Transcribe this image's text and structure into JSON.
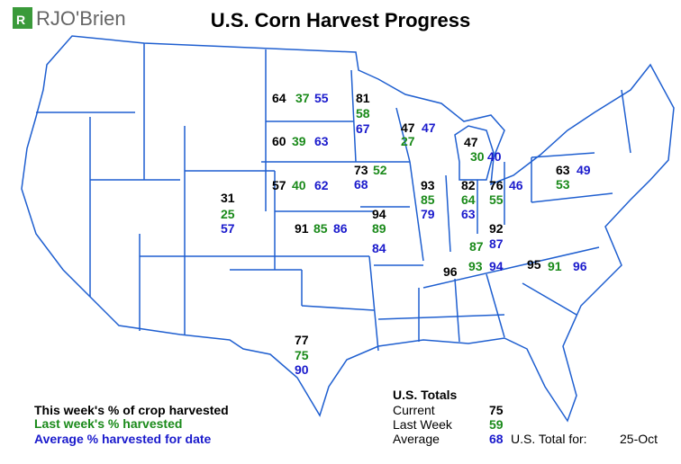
{
  "header": {
    "logo": "RJO'Brien",
    "title": "U.S. Corn Harvest Progress"
  },
  "states": [
    {
      "current": 64,
      "last_week": 37,
      "average": 55
    },
    {
      "current": 81,
      "last_week": 58,
      "average": 67
    },
    {
      "current": 60,
      "last_week": 39,
      "average": 63
    },
    {
      "current": 47,
      "last_week": 27,
      "average": 47
    },
    {
      "current": 47,
      "last_week": 30,
      "average": 40
    },
    {
      "current": 57,
      "last_week": 40,
      "average": 62
    },
    {
      "current": 73,
      "last_week": 52,
      "average": 68
    },
    {
      "current": 93,
      "last_week": 85,
      "average": 79
    },
    {
      "current": 82,
      "last_week": 64,
      "average": 63
    },
    {
      "current": 76,
      "last_week": 55,
      "average": 46
    },
    {
      "current": 63,
      "last_week": 53,
      "average": 49
    },
    {
      "current": 31,
      "last_week": 25,
      "average": 57
    },
    {
      "current": 91,
      "last_week": 85,
      "average": 86
    },
    {
      "current": 94,
      "last_week": 89,
      "average": 84
    },
    {
      "current": 92,
      "last_week": 87,
      "average": 87
    },
    {
      "current": 96,
      "last_week": 93,
      "average": 94
    },
    {
      "current": 95,
      "last_week": 91,
      "average": 96
    },
    {
      "current": 77,
      "last_week": 75,
      "average": 90
    }
  ],
  "legend": [
    "This week's % of crop harvested",
    "Last week's % harvested",
    "Average % harvested for date"
  ],
  "totals": {
    "title": "U.S. Totals",
    "rows": [
      {
        "label": "Current",
        "value": 75
      },
      {
        "label": "Last Week",
        "value": 59
      },
      {
        "label": "Average",
        "value": 68
      }
    ],
    "date_label": "U.S. Total for:",
    "date": "25-Oct"
  }
}
